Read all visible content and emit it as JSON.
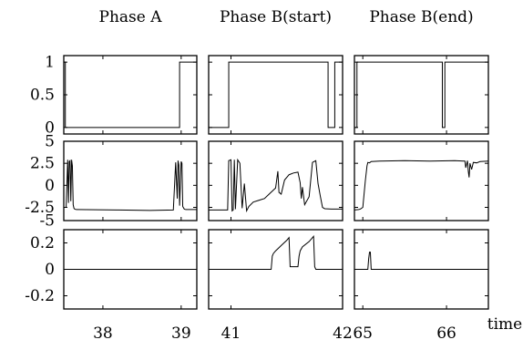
{
  "chart_data": {
    "type": "line",
    "column_titles": [
      "Phase A",
      "Phase B(start)",
      "Phase B(end)"
    ],
    "xlabel": "time",
    "grid": false,
    "rows": [
      {
        "ylim": [
          -0.1,
          1.1
        ],
        "yticks": [
          0,
          0.5,
          1
        ],
        "ytick_labels": [
          "0",
          "0.5",
          "1"
        ]
      },
      {
        "ylim": [
          -4,
          5
        ],
        "yticks": [
          -2.5,
          0,
          2.5,
          5
        ],
        "ytick_labels": [
          "-2.5",
          "0",
          "2.5",
          "5"
        ],
        "extra_tick_labels": [
          {
            "value": -4,
            "label": "-5"
          }
        ]
      },
      {
        "ylim": [
          -0.3,
          0.3
        ],
        "yticks": [
          -0.2,
          0,
          0.2
        ],
        "ytick_labels": [
          "-0.2",
          "0",
          "0.2"
        ]
      }
    ],
    "columns": [
      {
        "xlim": [
          37.5,
          39.2
        ],
        "xticks": [
          38,
          39
        ],
        "xtick_labels": [
          "38",
          "39"
        ]
      },
      {
        "xlim": [
          40.8,
          42.0
        ],
        "xticks": [
          41,
          42
        ],
        "xtick_labels": [
          "41",
          "42"
        ]
      },
      {
        "xlim": [
          64.9,
          66.5
        ],
        "xticks": [
          65,
          66
        ],
        "xtick_labels": [
          "65",
          "66"
        ]
      }
    ],
    "panels": [
      {
        "row": 0,
        "col": 0,
        "x": [
          37.5,
          37.52,
          37.52,
          38.98,
          38.98,
          39.2
        ],
        "y": [
          1,
          1,
          0,
          0,
          1,
          1
        ]
      },
      {
        "row": 0,
        "col": 1,
        "x": [
          40.8,
          40.98,
          40.98,
          41.87,
          41.87,
          41.93,
          41.93,
          42.0
        ],
        "y": [
          0,
          0,
          1,
          1,
          0,
          0,
          1,
          1
        ]
      },
      {
        "row": 0,
        "col": 2,
        "x": [
          64.9,
          64.93,
          64.93,
          65.95,
          65.95,
          65.98,
          65.98,
          66.5
        ],
        "y": [
          0,
          0,
          1,
          1,
          0,
          0,
          1,
          1
        ]
      },
      {
        "row": 1,
        "col": 0,
        "x": [
          37.5,
          37.53,
          37.55,
          37.56,
          37.57,
          37.58,
          37.59,
          37.6,
          37.61,
          37.62,
          37.63,
          37.64,
          37.66,
          38.2,
          38.6,
          38.9,
          38.93,
          38.95,
          38.96,
          38.97,
          38.98,
          39.0,
          39.01,
          39.02,
          39.04,
          39.06,
          39.2
        ],
        "y": [
          -2.5,
          -2.5,
          2.9,
          -2.0,
          2.7,
          2.8,
          -1.8,
          2.9,
          2.2,
          -2.2,
          -2.6,
          -2.7,
          -2.75,
          -2.8,
          -2.85,
          -2.8,
          2.6,
          -1.5,
          2.8,
          2.3,
          -2.3,
          2.7,
          2.5,
          -2.4,
          -2.7,
          -2.75,
          -2.75
        ]
      },
      {
        "row": 1,
        "col": 1,
        "x": [
          40.8,
          40.97,
          40.98,
          41.0,
          41.01,
          41.02,
          41.03,
          41.04,
          41.06,
          41.08,
          41.1,
          41.12,
          41.14,
          41.16,
          41.2,
          41.25,
          41.3,
          41.35,
          41.4,
          41.42,
          41.43,
          41.45,
          41.48,
          41.52,
          41.56,
          41.6,
          41.62,
          41.63,
          41.64,
          41.66,
          41.7,
          41.73,
          41.76,
          41.78,
          41.8,
          41.82,
          41.84,
          41.9,
          42.0
        ],
        "y": [
          -2.8,
          -2.8,
          2.8,
          2.9,
          -2.9,
          -2.8,
          2.9,
          -2.7,
          2.9,
          2.5,
          -2.6,
          0.2,
          -2.9,
          -2.4,
          -1.9,
          -1.7,
          -1.5,
          -0.9,
          -0.3,
          1.6,
          -0.8,
          -1.0,
          0.6,
          1.2,
          1.4,
          1.5,
          0.3,
          -1.5,
          -0.2,
          -2.2,
          -1.3,
          2.6,
          2.8,
          0.2,
          -1.2,
          -2.5,
          -2.65,
          -2.7,
          -2.7
        ]
      },
      {
        "row": 1,
        "col": 2,
        "x": [
          64.9,
          64.95,
          64.97,
          65.0,
          65.03,
          65.05,
          65.06,
          65.08,
          65.1,
          65.2,
          65.5,
          65.8,
          66.1,
          66.22,
          66.23,
          66.25,
          66.26,
          66.27,
          66.28,
          66.3,
          66.32,
          66.36,
          66.4,
          66.5
        ],
        "y": [
          -2.8,
          -2.75,
          -2.7,
          -2.5,
          0.5,
          2.2,
          2.6,
          2.55,
          2.7,
          2.75,
          2.8,
          2.75,
          2.8,
          2.75,
          2.0,
          2.8,
          1.6,
          0.9,
          2.5,
          1.8,
          2.6,
          2.55,
          2.7,
          2.75
        ]
      },
      {
        "row": 2,
        "col": 0,
        "x": [
          37.5,
          39.2
        ],
        "y": [
          0,
          0
        ]
      },
      {
        "row": 2,
        "col": 1,
        "x": [
          40.8,
          41.36,
          41.37,
          41.38,
          41.4,
          41.45,
          41.5,
          41.52,
          41.53,
          41.6,
          41.61,
          41.62,
          41.64,
          41.7,
          41.74,
          41.75,
          41.76,
          42.0
        ],
        "y": [
          0,
          0,
          0.1,
          0.12,
          0.14,
          0.18,
          0.22,
          0.24,
          0.02,
          0.02,
          0.1,
          0.14,
          0.17,
          0.21,
          0.25,
          0.02,
          0,
          0
        ]
      },
      {
        "row": 2,
        "col": 2,
        "x": [
          64.9,
          65.06,
          65.07,
          65.08,
          65.09,
          65.1,
          66.5
        ],
        "y": [
          0,
          0,
          0.08,
          0.13,
          0.13,
          0,
          0
        ]
      }
    ]
  }
}
